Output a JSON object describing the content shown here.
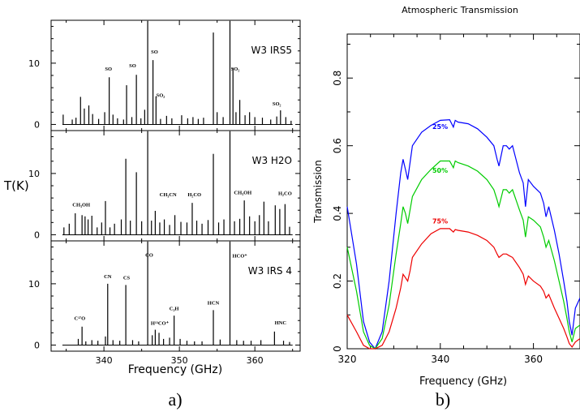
{
  "panel_a": {
    "caption": "a)",
    "ylabel": "T(K)",
    "xlabel": "Frequency (GHz)",
    "x_ticks": [
      "340",
      "350",
      "360"
    ],
    "y_ticks": [
      "0",
      "10"
    ]
  },
  "panel_b": {
    "caption": "b)",
    "title": "Atmospheric Transmission",
    "ylabel": "Transmission",
    "xlabel": "Frequency (GHz)",
    "x_ticks": [
      "320",
      "340",
      "360"
    ],
    "y_ticks": [
      "0",
      "0.2",
      "0.4",
      "0.6",
      "0.8"
    ]
  },
  "chart_data": [
    {
      "type": "bar",
      "title": "W3 IRS5",
      "ylabel": "T(K)",
      "xlabel": "Frequency (GHz)",
      "xlim": [
        333,
        366
      ],
      "ylim": [
        -1,
        17
      ],
      "peaks": [
        [
          334.6,
          1.6
        ],
        [
          335.8,
          0.8
        ],
        [
          336.3,
          1.1
        ],
        [
          336.9,
          4.5
        ],
        [
          337.4,
          2.6
        ],
        [
          338.0,
          3.1
        ],
        [
          338.5,
          1.7
        ],
        [
          339.3,
          0.9
        ],
        [
          340.1,
          2.0
        ],
        [
          340.7,
          7.7
        ],
        [
          341.2,
          1.6
        ],
        [
          341.8,
          1.0
        ],
        [
          342.6,
          0.8
        ],
        [
          343.0,
          6.4
        ],
        [
          343.7,
          1.2
        ],
        [
          344.3,
          8.1
        ],
        [
          344.9,
          1.0
        ],
        [
          345.4,
          2.4
        ],
        [
          345.8,
          16.9
        ],
        [
          346.5,
          10.5
        ],
        [
          346.9,
          4.6
        ],
        [
          347.5,
          0.9
        ],
        [
          348.3,
          1.4
        ],
        [
          349.0,
          1.0
        ],
        [
          350.3,
          1.5
        ],
        [
          351.1,
          1.0
        ],
        [
          351.8,
          1.2
        ],
        [
          352.5,
          0.9
        ],
        [
          353.2,
          1.1
        ],
        [
          354.5,
          15.0
        ],
        [
          355.0,
          2.0
        ],
        [
          355.8,
          1.2
        ],
        [
          356.7,
          16.9
        ],
        [
          357.1,
          9.2
        ],
        [
          357.5,
          2.0
        ],
        [
          358.0,
          4.0
        ],
        [
          358.7,
          1.5
        ],
        [
          359.3,
          2.0
        ],
        [
          360.0,
          1.2
        ],
        [
          361.0,
          1.1
        ],
        [
          362.1,
          0.8
        ],
        [
          362.9,
          1.3
        ],
        [
          363.4,
          2.3
        ],
        [
          364.1,
          1.2
        ],
        [
          364.8,
          0.6
        ]
      ],
      "annotations": [
        {
          "x": 340.6,
          "y": 8.8,
          "text": "SO"
        },
        {
          "x": 343.8,
          "y": 9.3,
          "text": "SO"
        },
        {
          "x": 346.7,
          "y": 11.6,
          "text": "SO"
        },
        {
          "x": 347.5,
          "y": 4.5,
          "text": "SO₂"
        },
        {
          "x": 357.4,
          "y": 8.8,
          "text": "SO₂"
        },
        {
          "x": 362.9,
          "y": 3.1,
          "text": "SO₂"
        }
      ]
    },
    {
      "type": "bar",
      "title": "W3 H2O",
      "ylabel": "T(K)",
      "xlabel": "Frequency (GHz)",
      "xlim": [
        333,
        366
      ],
      "ylim": [
        -1,
        17
      ],
      "peaks": [
        [
          334.7,
          1.2
        ],
        [
          335.4,
          1.8
        ],
        [
          336.2,
          3.5
        ],
        [
          337.1,
          3.2
        ],
        [
          337.5,
          3.0
        ],
        [
          337.9,
          2.5
        ],
        [
          338.4,
          3.1
        ],
        [
          339.1,
          1.2
        ],
        [
          339.7,
          2.0
        ],
        [
          340.2,
          5.5
        ],
        [
          340.8,
          1.2
        ],
        [
          341.4,
          1.8
        ],
        [
          342.3,
          2.5
        ],
        [
          342.9,
          12.4
        ],
        [
          343.5,
          2.3
        ],
        [
          344.3,
          10.2
        ],
        [
          345.0,
          2.2
        ],
        [
          345.8,
          16.9
        ],
        [
          346.3,
          2.3
        ],
        [
          346.8,
          3.9
        ],
        [
          347.4,
          2.0
        ],
        [
          348.0,
          2.5
        ],
        [
          348.7,
          1.6
        ],
        [
          349.4,
          3.2
        ],
        [
          350.2,
          2.1
        ],
        [
          351.0,
          2.0
        ],
        [
          351.7,
          5.2
        ],
        [
          352.3,
          2.3
        ],
        [
          353.0,
          1.8
        ],
        [
          353.8,
          2.4
        ],
        [
          354.5,
          13.2
        ],
        [
          355.2,
          2.0
        ],
        [
          355.9,
          2.5
        ],
        [
          356.7,
          16.9
        ],
        [
          357.3,
          2.2
        ],
        [
          358.0,
          2.6
        ],
        [
          358.6,
          5.6
        ],
        [
          359.3,
          3.0
        ],
        [
          360.0,
          2.2
        ],
        [
          360.6,
          3.2
        ],
        [
          361.2,
          5.4
        ],
        [
          361.8,
          2.2
        ],
        [
          362.7,
          4.8
        ],
        [
          363.3,
          4.2
        ],
        [
          364.0,
          5.0
        ],
        [
          364.6,
          1.3
        ]
      ],
      "annotations": [
        {
          "x": 337.0,
          "y": 4.6,
          "text": "CH₃OH"
        },
        {
          "x": 352.0,
          "y": 6.3,
          "text": "H₂CO"
        },
        {
          "x": 348.5,
          "y": 6.3,
          "text": "CH₃CN"
        },
        {
          "x": 358.4,
          "y": 6.6,
          "text": "CH₃OH"
        },
        {
          "x": 364.0,
          "y": 6.5,
          "text": "H₂CO"
        }
      ]
    },
    {
      "type": "bar",
      "title": "W3 IRS 4",
      "ylabel": "T(K)",
      "xlabel": "Frequency (GHz)",
      "xlim": [
        333,
        366
      ],
      "ylim": [
        -1,
        17
      ],
      "peaks": [
        [
          336.6,
          1.0
        ],
        [
          337.1,
          3.0
        ],
        [
          337.6,
          0.6
        ],
        [
          338.4,
          0.8
        ],
        [
          339.2,
          0.7
        ],
        [
          340.2,
          1.4
        ],
        [
          340.5,
          10.0
        ],
        [
          341.2,
          0.8
        ],
        [
          342.1,
          0.7
        ],
        [
          342.9,
          9.8
        ],
        [
          343.8,
          0.8
        ],
        [
          344.6,
          0.6
        ],
        [
          345.8,
          16.9
        ],
        [
          346.4,
          1.6
        ],
        [
          346.8,
          2.5
        ],
        [
          347.3,
          2.0
        ],
        [
          347.9,
          1.0
        ],
        [
          348.7,
          1.2
        ],
        [
          349.3,
          4.8
        ],
        [
          350.1,
          1.0
        ],
        [
          351.0,
          0.7
        ],
        [
          352.0,
          0.6
        ],
        [
          353.0,
          0.6
        ],
        [
          354.5,
          5.7
        ],
        [
          355.4,
          0.9
        ],
        [
          356.7,
          16.9
        ],
        [
          357.6,
          0.8
        ],
        [
          358.5,
          0.7
        ],
        [
          359.5,
          0.7
        ],
        [
          360.8,
          0.8
        ],
        [
          362.6,
          2.2
        ],
        [
          363.8,
          0.7
        ],
        [
          364.6,
          0.5
        ]
      ],
      "annotations": [
        {
          "x": 336.8,
          "y": 4.1,
          "text": "C¹⁷O"
        },
        {
          "x": 340.5,
          "y": 10.9,
          "text": "CN"
        },
        {
          "x": 343.0,
          "y": 10.7,
          "text": "CS"
        },
        {
          "x": 346.0,
          "y": 14.4,
          "text": "CO"
        },
        {
          "x": 347.4,
          "y": 3.3,
          "text": "H¹³CO⁺"
        },
        {
          "x": 349.3,
          "y": 5.7,
          "text": "C₂H"
        },
        {
          "x": 354.5,
          "y": 6.6,
          "text": "HCN"
        },
        {
          "x": 358.0,
          "y": 14.3,
          "text": "HCO⁺"
        },
        {
          "x": 363.4,
          "y": 3.4,
          "text": "HNC"
        }
      ]
    },
    {
      "type": "line",
      "title": "Atmospheric Transmission",
      "xlabel": "Frequency (GHz)",
      "ylabel": "Transmission",
      "xlim": [
        320,
        370
      ],
      "ylim": [
        0,
        0.93
      ],
      "grid": false,
      "series": [
        {
          "name": "25%",
          "color": "#0000ff",
          "label_at": [
            341,
            0.65
          ],
          "x": [
            320,
            322,
            323.5,
            324.8,
            326,
            327.5,
            329,
            330.5,
            331.5,
            332,
            332.5,
            333,
            333.5,
            334,
            336,
            338,
            340,
            342,
            342.8,
            343.2,
            343.8,
            346,
            348,
            350,
            351.5,
            352.2,
            352.6,
            353.5,
            354.2,
            354.8,
            355.5,
            357,
            357.8,
            358.3,
            358.9,
            360,
            361.5,
            362.2,
            362.7,
            363.3,
            364.5,
            365.5,
            366.5,
            367.2,
            367.7,
            368.3,
            369,
            370
          ],
          "y": [
            0.42,
            0.25,
            0.08,
            0.02,
            0.0,
            0.05,
            0.2,
            0.4,
            0.52,
            0.56,
            0.53,
            0.5,
            0.55,
            0.6,
            0.64,
            0.66,
            0.675,
            0.677,
            0.655,
            0.675,
            0.67,
            0.665,
            0.65,
            0.625,
            0.6,
            0.56,
            0.54,
            0.6,
            0.6,
            0.59,
            0.6,
            0.52,
            0.49,
            0.42,
            0.5,
            0.48,
            0.46,
            0.43,
            0.39,
            0.42,
            0.35,
            0.28,
            0.2,
            0.14,
            0.08,
            0.04,
            0.12,
            0.15
          ]
        },
        {
          "name": "50%",
          "color": "#00cc00",
          "label_at": [
            341,
            0.52
          ],
          "x": [
            320,
            322,
            323.5,
            324.8,
            326,
            327.5,
            329,
            330.5,
            331.5,
            332,
            332.5,
            333,
            333.5,
            334,
            336,
            338,
            340,
            342,
            342.8,
            343.2,
            343.8,
            346,
            348,
            350,
            351.5,
            352.2,
            352.6,
            353.5,
            354.2,
            354.8,
            355.5,
            357,
            357.8,
            358.3,
            358.9,
            360,
            361.5,
            362.2,
            362.7,
            363.3,
            364.5,
            365.5,
            366.5,
            367.2,
            367.7,
            368.3,
            369,
            370
          ],
          "y": [
            0.3,
            0.17,
            0.05,
            0.01,
            0.0,
            0.03,
            0.13,
            0.28,
            0.37,
            0.42,
            0.4,
            0.37,
            0.41,
            0.45,
            0.5,
            0.53,
            0.555,
            0.555,
            0.535,
            0.555,
            0.55,
            0.54,
            0.525,
            0.5,
            0.47,
            0.44,
            0.42,
            0.47,
            0.47,
            0.46,
            0.47,
            0.41,
            0.38,
            0.33,
            0.39,
            0.38,
            0.36,
            0.33,
            0.3,
            0.32,
            0.26,
            0.2,
            0.14,
            0.09,
            0.05,
            0.02,
            0.06,
            0.07
          ]
        },
        {
          "name": "75%",
          "color": "#ee0000",
          "label_at": [
            341,
            0.37
          ],
          "x": [
            320,
            322,
            323.5,
            324.8,
            326,
            327.5,
            329,
            330.5,
            331.5,
            332,
            332.5,
            333,
            333.5,
            334,
            336,
            338,
            340,
            342,
            342.8,
            343.2,
            343.8,
            346,
            348,
            350,
            351.5,
            352.2,
            352.6,
            353.5,
            354.2,
            354.8,
            355.5,
            357,
            357.8,
            358.3,
            358.9,
            360,
            361.5,
            362.2,
            362.7,
            363.3,
            364.5,
            365.5,
            366.5,
            367.2,
            367.7,
            368.3,
            369,
            370
          ],
          "y": [
            0.1,
            0.05,
            0.01,
            0.0,
            0.0,
            0.01,
            0.05,
            0.12,
            0.18,
            0.22,
            0.21,
            0.2,
            0.23,
            0.27,
            0.31,
            0.34,
            0.355,
            0.355,
            0.345,
            0.352,
            0.35,
            0.345,
            0.335,
            0.32,
            0.3,
            0.28,
            0.27,
            0.28,
            0.28,
            0.275,
            0.27,
            0.24,
            0.22,
            0.19,
            0.215,
            0.2,
            0.185,
            0.17,
            0.15,
            0.16,
            0.12,
            0.09,
            0.06,
            0.035,
            0.015,
            0.005,
            0.02,
            0.03
          ]
        }
      ]
    }
  ]
}
